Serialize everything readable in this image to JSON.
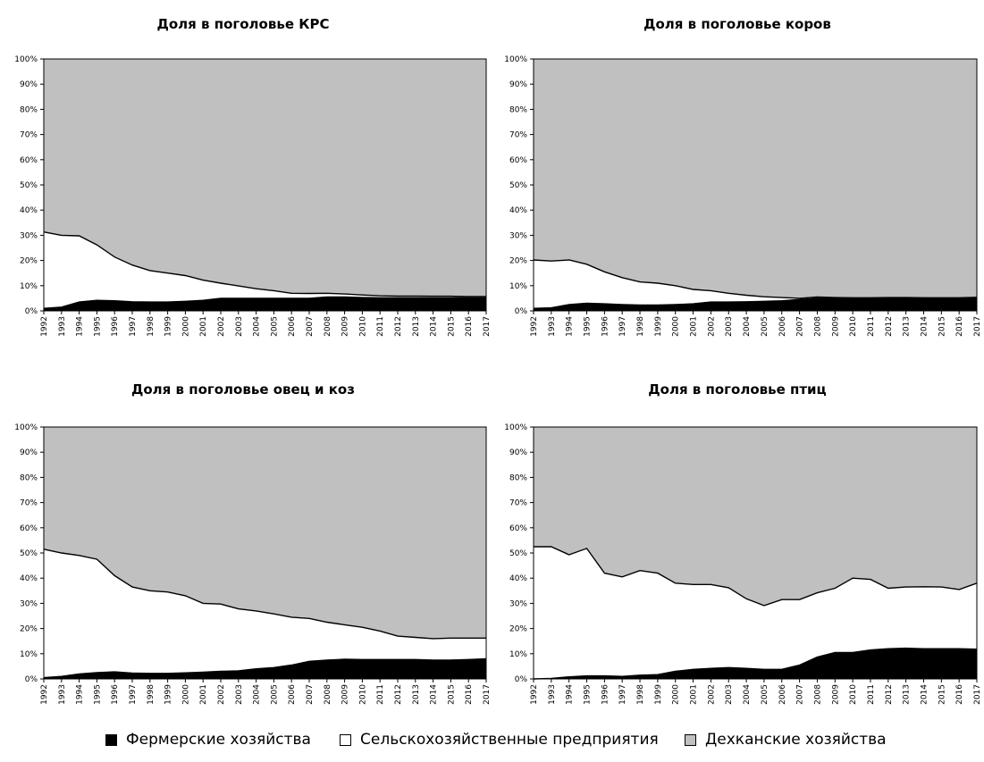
{
  "colors": {
    "Фермерские хозяйства": "#000000",
    "Сельскохозяйственные предприятия": "#ffffff",
    "Дехканские хозяйства": "#c0c0c0"
  },
  "legend": {
    "items": [
      {
        "label": "Фермерские хозяйства",
        "color": "#000000"
      },
      {
        "label": "Сельскохозяйственные предприятия",
        "color": "#ffffff"
      },
      {
        "label": "Дехканские хозяйства",
        "color": "#c0c0c0"
      }
    ],
    "placement": "bottom"
  },
  "chart_data": [
    {
      "type": "area",
      "stacked": "100%",
      "title": "Доля в поголовье КРС",
      "x": [
        "1992",
        "1993",
        "1994",
        "1995",
        "1996",
        "1997",
        "1998",
        "1999",
        "2000",
        "2001",
        "2002",
        "2003",
        "2004",
        "2005",
        "2006",
        "2007",
        "2008",
        "2009",
        "2010",
        "2011",
        "2012",
        "2013",
        "2014",
        "2015",
        "2016",
        "2017"
      ],
      "yticks": [
        "0%",
        "10%",
        "20%",
        "30%",
        "40%",
        "50%",
        "60%",
        "70%",
        "80%",
        "90%",
        "100%"
      ],
      "ylim": [
        0,
        100
      ],
      "grid": false,
      "series": [
        {
          "name": "Фермерские хозяйства",
          "values": [
            1,
            1.5,
            3.5,
            4.2,
            4,
            3.6,
            3.5,
            3.5,
            3.8,
            4.2,
            5,
            5,
            5,
            5,
            5,
            5,
            5.5,
            5.5,
            5.3,
            5.2,
            5.2,
            5.2,
            5.2,
            5.2,
            5.2,
            5.2
          ]
        },
        {
          "name": "Сельскохозяйственные предприятия",
          "values": [
            30.3,
            28.5,
            26.3,
            22,
            17.4,
            14.6,
            12.5,
            11.5,
            10.2,
            8,
            6,
            4.9,
            3.8,
            3,
            2,
            1.9,
            1.5,
            1.2,
            1,
            0.8,
            0.7,
            0.7,
            0.6,
            0.6,
            0.5,
            0.5
          ]
        },
        {
          "name": "Дехканские хозяйства",
          "values": [
            68.7,
            70,
            70.2,
            73.8,
            78.6,
            81.8,
            84,
            85,
            86,
            87.8,
            89,
            90.1,
            91.2,
            92,
            93,
            93.1,
            93,
            93.3,
            93.7,
            94,
            94.1,
            94.1,
            94.2,
            94.2,
            94.3,
            94.3
          ]
        }
      ]
    },
    {
      "type": "area",
      "stacked": "100%",
      "title": "Доля в поголовье коров",
      "x": [
        "1992",
        "1993",
        "1994",
        "1995",
        "1996",
        "1997",
        "1998",
        "1999",
        "2000",
        "2001",
        "2002",
        "2003",
        "2004",
        "2005",
        "2006",
        "2007",
        "2008",
        "2009",
        "2010",
        "2011",
        "2012",
        "2013",
        "2014",
        "2015",
        "2016",
        "2017"
      ],
      "yticks": [
        "0%",
        "10%",
        "20%",
        "30%",
        "40%",
        "50%",
        "60%",
        "70%",
        "80%",
        "90%",
        "100%"
      ],
      "ylim": [
        0,
        100
      ],
      "grid": false,
      "series": [
        {
          "name": "Фермерские хозяйства",
          "values": [
            1,
            1.2,
            2.5,
            3,
            2.8,
            2.5,
            2.3,
            2.3,
            2.5,
            2.8,
            3.5,
            3.5,
            3.6,
            3.8,
            4,
            4.5,
            5,
            5,
            5,
            5,
            5,
            5,
            5,
            5,
            5,
            5
          ]
        },
        {
          "name": "Сельскохозяйственные предприятия",
          "values": [
            19.2,
            18.6,
            17.7,
            15.5,
            12.7,
            10.7,
            9.2,
            8.7,
            7.5,
            5.7,
            4.5,
            3.5,
            2.6,
            1.8,
            1.3,
            0.5,
            0.5,
            0.3,
            0.2,
            0.2,
            0.3,
            0.3,
            0.2,
            0.2,
            0.2,
            0.4
          ]
        },
        {
          "name": "Дехканские хозяйства",
          "values": [
            79.8,
            80.2,
            79.8,
            81.5,
            84.5,
            86.8,
            88.5,
            89,
            90,
            91.5,
            92,
            93,
            93.8,
            94.4,
            94.7,
            95,
            94.5,
            94.7,
            94.8,
            94.8,
            94.7,
            94.7,
            94.8,
            94.8,
            94.8,
            94.6
          ]
        }
      ]
    },
    {
      "type": "area",
      "stacked": "100%",
      "title": "Доля в поголовье овец и коз",
      "x": [
        "1992",
        "1993",
        "1994",
        "1995",
        "1996",
        "1997",
        "1998",
        "1999",
        "2000",
        "2001",
        "2002",
        "2003",
        "2004",
        "2005",
        "2006",
        "2007",
        "2008",
        "2009",
        "2010",
        "2011",
        "2012",
        "2013",
        "2014",
        "2015",
        "2016",
        "2017"
      ],
      "yticks": [
        "0%",
        "10%",
        "20%",
        "30%",
        "40%",
        "50%",
        "60%",
        "70%",
        "80%",
        "90%",
        "100%"
      ],
      "ylim": [
        0,
        100
      ],
      "grid": false,
      "series": [
        {
          "name": "Фермерские хозяйства",
          "values": [
            0.5,
            1,
            2,
            2.5,
            2.8,
            2.3,
            2.2,
            2.2,
            2.4,
            2.7,
            3,
            3.2,
            4,
            4.5,
            5.5,
            7,
            7.5,
            7.8,
            7.7,
            7.7,
            7.7,
            7.7,
            7.5,
            7.5,
            7.7,
            8
          ]
        },
        {
          "name": "Сельскохозяйственные предприятия",
          "values": [
            51,
            49,
            47,
            45,
            38.2,
            34.2,
            32.8,
            32.3,
            30.6,
            27.3,
            26.7,
            24.6,
            23,
            21.3,
            19,
            17,
            15,
            13.7,
            12.8,
            11.3,
            9.3,
            8.8,
            8.5,
            8.7,
            8.5,
            8.2
          ]
        },
        {
          "name": "Дехканские хозяйства",
          "values": [
            48.5,
            50,
            51,
            52.5,
            59,
            63.5,
            65,
            65.5,
            67,
            70,
            70.3,
            72.2,
            73,
            74.2,
            75.5,
            76,
            77.5,
            78.5,
            79.5,
            81,
            83,
            83.5,
            84,
            83.8,
            83.8,
            83.8
          ]
        }
      ]
    },
    {
      "type": "area",
      "stacked": "100%",
      "title": "Доля в поголовье птиц",
      "x": [
        "1992",
        "1993",
        "1994",
        "1995",
        "1996",
        "1997",
        "1998",
        "1999",
        "2000",
        "2001",
        "2002",
        "2003",
        "2004",
        "2005",
        "2006",
        "2007",
        "2008",
        "2009",
        "2010",
        "2011",
        "2012",
        "2013",
        "2014",
        "2015",
        "2016",
        "2017"
      ],
      "yticks": [
        "0%",
        "10%",
        "20%",
        "30%",
        "40%",
        "50%",
        "60%",
        "70%",
        "80%",
        "90%",
        "100%"
      ],
      "ylim": [
        0,
        100
      ],
      "grid": false,
      "series": [
        {
          "name": "Фермерские хозяйства",
          "values": [
            0,
            0.2,
            0.8,
            1.2,
            1.2,
            1,
            1.5,
            1.7,
            3,
            3.8,
            4.2,
            4.5,
            4.2,
            3.8,
            3.8,
            5.5,
            8.7,
            10.5,
            10.5,
            11.5,
            12,
            12.2,
            12,
            12,
            12,
            11.8
          ]
        },
        {
          "name": "Сельскохозяйственные предприятия",
          "values": [
            52.5,
            52.3,
            48.5,
            50.6,
            40.8,
            39.5,
            41.5,
            40.3,
            35,
            33.7,
            33.3,
            31.7,
            27.6,
            25.3,
            27.7,
            26,
            25.5,
            25.5,
            29.5,
            28,
            24,
            24.3,
            24.6,
            24.5,
            23.5,
            26.2
          ]
        },
        {
          "name": "Дехканские хозяйства",
          "values": [
            47.5,
            47.5,
            50.7,
            48.2,
            58,
            59.5,
            57,
            58,
            62,
            62.5,
            62.5,
            63.8,
            68.2,
            70.9,
            68.5,
            68.5,
            65.8,
            64,
            60,
            60.5,
            64,
            63.5,
            63.4,
            63.5,
            64.5,
            62
          ]
        }
      ]
    }
  ]
}
